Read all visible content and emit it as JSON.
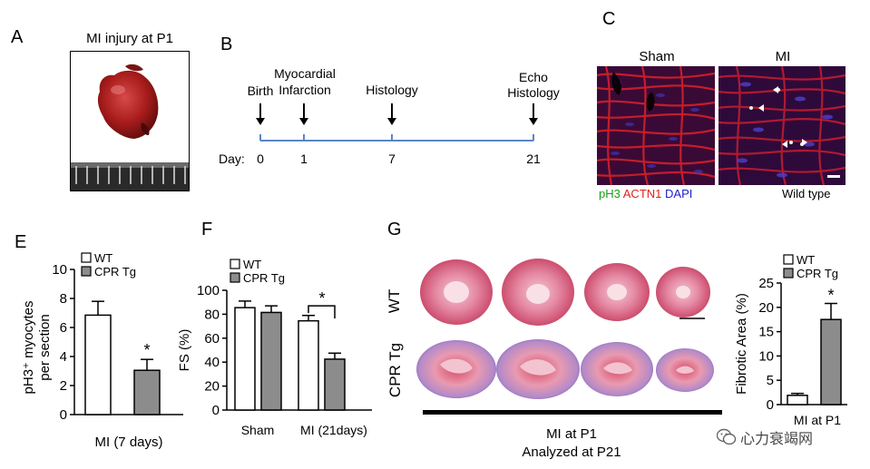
{
  "panelA": {
    "letter": "A",
    "title": "MI injury at P1"
  },
  "panelB": {
    "letter": "B",
    "events": [
      {
        "label_lines": [
          "Birth"
        ],
        "day": "0"
      },
      {
        "label_lines": [
          "Myocardial",
          "Infarction"
        ],
        "day": "1"
      },
      {
        "label_lines": [
          "Histology"
        ],
        "day": "7"
      },
      {
        "label_lines": [
          "Echo",
          "Histology"
        ],
        "day": "21"
      }
    ],
    "day_label": "Day:"
  },
  "panelC": {
    "letter": "C",
    "titles": [
      "Sham",
      "MI"
    ],
    "stain_legend": [
      {
        "text": "pH3",
        "color": "#1a9f1a"
      },
      {
        "text": "ACTN1",
        "color": "#e02020"
      },
      {
        "text": "DAPI",
        "color": "#2020c8"
      }
    ],
    "genotype": "Wild type"
  },
  "panelE": {
    "letter": "E",
    "xlabel": "MI (7 days)"
  },
  "panelF": {
    "letter": "F",
    "group_labels": [
      "Sham",
      "MI (21days)"
    ]
  },
  "panelG": {
    "letter": "G",
    "row_labels": [
      "WT",
      "CPR Tg"
    ],
    "caption_lines": [
      "MI at P1",
      "Analyzed at P21"
    ],
    "bar_xlabel": "MI at P1"
  },
  "colors": {
    "wt_bar": "#ffffff",
    "tg_bar": "#8c8c8c",
    "timeline": "#5b86c4",
    "sirius_pink": "#e8a0b4",
    "sirius_red": "#d0405c",
    "fibrosis_blue": "#8a7bc0"
  },
  "watermark": {
    "text": "心力衰竭网",
    "icon": "wechat-icon"
  },
  "chart_data": [
    {
      "id": "E",
      "type": "bar",
      "categories": [
        "WT",
        "CPR Tg"
      ],
      "values": [
        6.85,
        3.05
      ],
      "errors": [
        0.95,
        0.75
      ],
      "significance": [
        "",
        "*"
      ],
      "ylabel_lines": [
        "pH3⁺ myocytes",
        "per section"
      ],
      "ylim": [
        0,
        10
      ],
      "yticks": [
        0,
        2,
        4,
        6,
        8,
        10
      ],
      "legend": [
        "WT",
        "CPR Tg"
      ],
      "legend_position": "top-left",
      "grid": false
    },
    {
      "id": "F",
      "type": "bar",
      "groups": [
        "Sham",
        "MI (21days)"
      ],
      "series": [
        {
          "name": "WT",
          "values": [
            85.5,
            74.5
          ],
          "errors": [
            5.5,
            4.5
          ]
        },
        {
          "name": "CPR Tg",
          "values": [
            81.5,
            42.5
          ],
          "errors": [
            5.5,
            5.0
          ]
        }
      ],
      "significance": {
        "group": "MI (21days)",
        "label": "*"
      },
      "ylabel": "FS (%)",
      "ylim": [
        0,
        100
      ],
      "yticks": [
        0,
        20,
        40,
        60,
        80,
        100
      ],
      "legend_position": "top-left",
      "grid": false
    },
    {
      "id": "G",
      "type": "bar",
      "categories": [
        "WT",
        "CPR Tg"
      ],
      "values": [
        1.9,
        17.5
      ],
      "errors": [
        0.4,
        3.3
      ],
      "significance": [
        "",
        "*"
      ],
      "ylabel": "Fibrotic Area (%)",
      "ylim": [
        0,
        25
      ],
      "yticks": [
        0,
        5,
        10,
        15,
        20,
        25
      ],
      "legend": [
        "WT",
        "CPR Tg"
      ],
      "legend_position": "top-left",
      "grid": false
    }
  ]
}
